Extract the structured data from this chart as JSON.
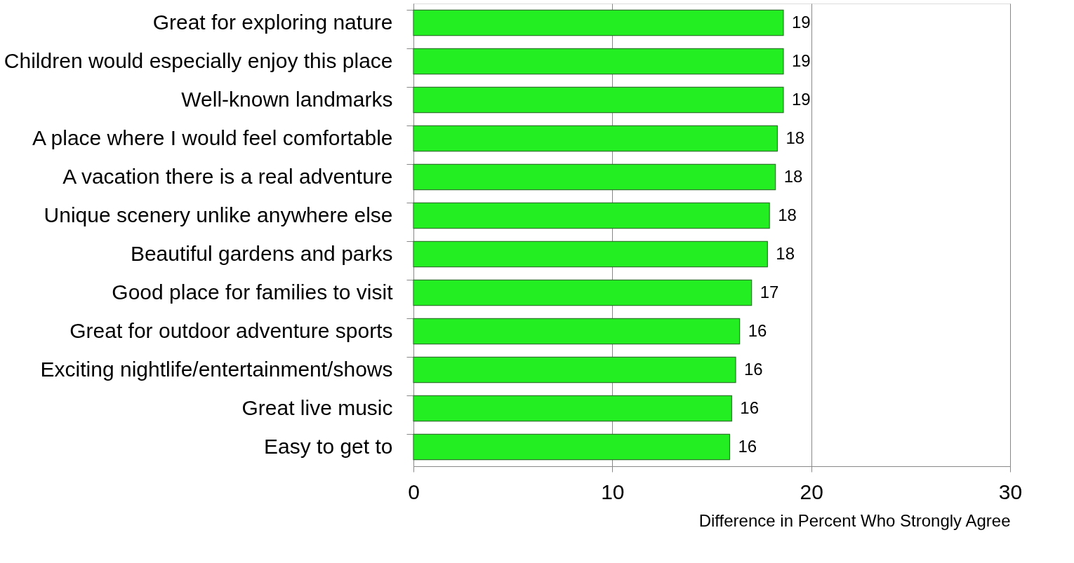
{
  "chart_data": {
    "type": "bar",
    "orientation": "horizontal",
    "xlabel": "Difference in Percent Who Strongly Agree",
    "categories": [
      "Great for exploring nature",
      "Children would especially enjoy this place",
      "Well-known landmarks",
      "A place where I would feel comfortable",
      "A vacation there is a real adventure",
      "Unique scenery unlike anywhere else",
      "Beautiful gardens and parks",
      "Good place for families to visit",
      "Great for outdoor adventure sports",
      "Exciting nightlife/entertainment/shows",
      "Great live music",
      "Easy to get to"
    ],
    "values": [
      18.6,
      18.6,
      18.6,
      18.3,
      18.2,
      17.9,
      17.8,
      17.0,
      16.4,
      16.2,
      16.0,
      15.9
    ],
    "value_labels": [
      "19",
      "19",
      "19",
      "18",
      "18",
      "18",
      "18",
      "17",
      "16",
      "16",
      "16",
      "16"
    ],
    "color": "#22ee22",
    "xlim": [
      0,
      30
    ],
    "xticks": [
      0,
      10,
      20,
      30
    ],
    "grid": "x"
  }
}
